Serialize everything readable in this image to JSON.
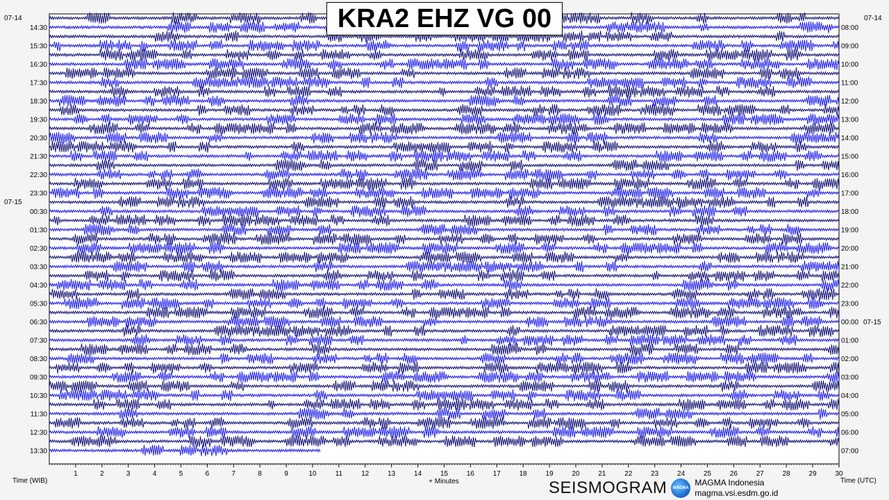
{
  "chart_data": {
    "type": "seismogram",
    "title": "KRA2 EHZ VG 00",
    "xlabel": "+ Minutes",
    "x_ticks": [
      "1",
      "2",
      "3",
      "4",
      "5",
      "6",
      "7",
      "8",
      "9",
      "10",
      "11",
      "12",
      "13",
      "14",
      "15",
      "16",
      "17",
      "18",
      "19",
      "20",
      "21",
      "22",
      "23",
      "24",
      "25",
      "26",
      "27",
      "28",
      "29",
      "30"
    ],
    "xlim": [
      0,
      30
    ],
    "left_axis_title": "Time (WIB)",
    "right_axis_title": "Time (UTC)",
    "left_dates": [
      "07-14",
      "07-15"
    ],
    "right_dates": [
      "07-14",
      "07-15"
    ],
    "left_ticks": [
      "14:30",
      "15:30",
      "16:30",
      "17:30",
      "18:30",
      "19:30",
      "20:30",
      "21:30",
      "22:30",
      "23:30",
      "00:30",
      "01:30",
      "02:30",
      "03:30",
      "04:30",
      "05:30",
      "06:30",
      "07:30",
      "08:30",
      "09:30",
      "10:30",
      "11:30",
      "12:30",
      "13:30"
    ],
    "right_ticks": [
      "08:00",
      "09:00",
      "10:00",
      "11:00",
      "12:00",
      "13:00",
      "14:00",
      "15:00",
      "16:00",
      "17:00",
      "18:00",
      "19:00",
      "20:00",
      "21:00",
      "22:00",
      "23:00",
      "00:00",
      "01:00",
      "02:00",
      "03:00",
      "04:00",
      "05:00",
      "06:00",
      "07:00"
    ],
    "traces_per_hour": 2,
    "trace_minutes": 30,
    "last_trace_minutes": 10.3,
    "trace_colors": [
      "#0a0a6e",
      "#1616e6"
    ]
  },
  "branding": {
    "word": "SEISMOGRAM",
    "logo_text": "MAGMA",
    "org": "MAGMA Indonesia",
    "url": "magma.vsi.esdm.go.id"
  }
}
